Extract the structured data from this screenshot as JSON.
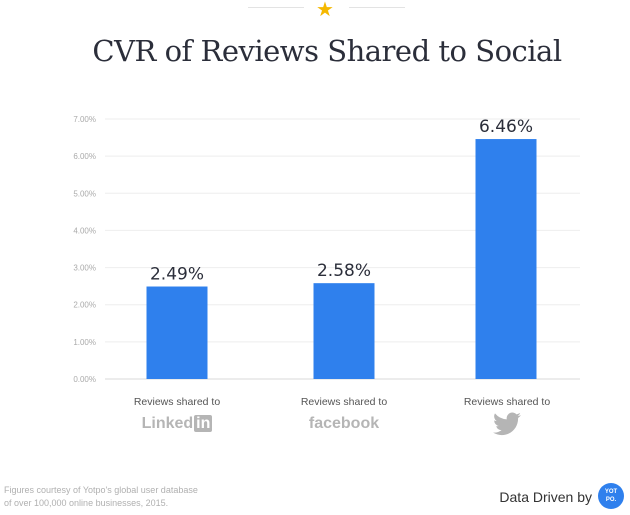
{
  "chart_data": {
    "type": "bar",
    "title": "CVR of Reviews Shared to Social",
    "categories": [
      "Reviews shared to LinkedIn",
      "Reviews shared to facebook",
      "Reviews shared to Twitter"
    ],
    "category_text": [
      "Reviews shared to",
      "Reviews shared to",
      "Reviews shared to"
    ],
    "category_logos": [
      "LinkedIn",
      "facebook",
      "twitter-bird-icon"
    ],
    "values": [
      2.49,
      2.58,
      6.46
    ],
    "data_labels": [
      "2.49%",
      "2.58%",
      "6.46%"
    ],
    "yticks": [
      "0.00%",
      "1.00%",
      "2.00%",
      "3.00%",
      "4.00%",
      "5.00%",
      "6.00%",
      "7.00%"
    ],
    "ylim": [
      0,
      7
    ],
    "grid": true,
    "bar_color": "#2f80ed"
  },
  "footer": {
    "note_line1": "Figures courtesy of Yotpo's global user database",
    "note_line2": "of over 100,000 online businesses, 2015.",
    "brand_text": "Data Driven by",
    "badge_line1": "YOT",
    "badge_line2": "PO."
  }
}
